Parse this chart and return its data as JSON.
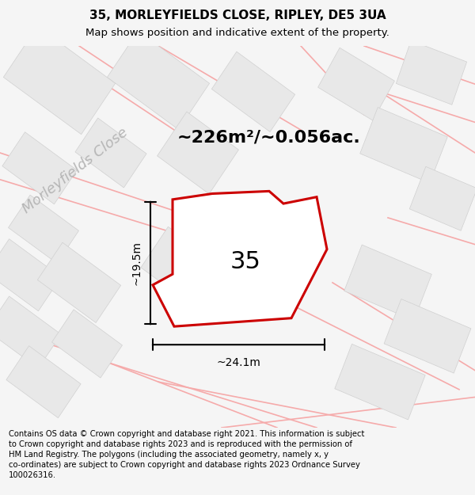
{
  "title": "35, MORLEYFIELDS CLOSE, RIPLEY, DE5 3UA",
  "subtitle": "Map shows position and indicative extent of the property.",
  "area_label": "~226m²/~0.056ac.",
  "dim_width": "~24.1m",
  "dim_height": "~19.5m",
  "plot_label": "35",
  "footer": "Contains OS data © Crown copyright and database right 2021. This information is subject to Crown copyright and database rights 2023 and is reproduced with the permission of HM Land Registry. The polygons (including the associated geometry, namely x, y co-ordinates) are subject to Crown copyright and database rights 2023 Ordnance Survey 100026316.",
  "road_label": "Morleyfields Close",
  "bg_color": "#f5f5f5",
  "map_bg": "#ffffff",
  "building_color": "#e8e8e8",
  "building_edge": "#d0d0d0",
  "road_line_color": "#f5aaaa",
  "plot_fill": "#ffffff",
  "plot_edge": "#cc0000",
  "title_fontsize": 11,
  "subtitle_fontsize": 9.5,
  "footer_fontsize": 7.2,
  "area_fontsize": 16,
  "dim_fontsize": 10,
  "plot_num_fontsize": 22,
  "road_label_fontsize": 13
}
